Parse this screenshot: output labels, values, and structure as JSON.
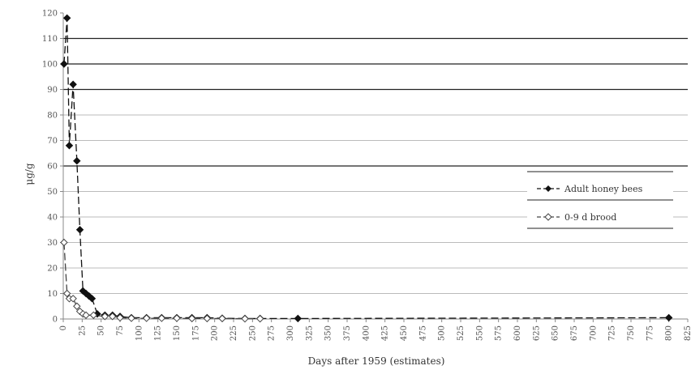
{
  "chart_data": {
    "type": "line",
    "xlabel": "Days after 1959 (estimates)",
    "ylabel": "μg/g",
    "xlim": [
      0,
      825
    ],
    "ylim": [
      0,
      120
    ],
    "x_ticks": [
      0,
      25,
      50,
      75,
      100,
      125,
      150,
      175,
      200,
      225,
      250,
      275,
      300,
      325,
      350,
      375,
      400,
      425,
      450,
      475,
      500,
      525,
      550,
      575,
      600,
      625,
      650,
      675,
      700,
      725,
      750,
      775,
      800,
      825
    ],
    "y_ticks": [
      0,
      10,
      20,
      30,
      40,
      50,
      60,
      70,
      80,
      90,
      100,
      110,
      120
    ],
    "horizontal_gridlines": [
      10,
      20,
      30,
      40,
      50,
      60,
      70,
      80,
      90,
      100,
      110
    ],
    "bold_gridlines": [
      60,
      90,
      100,
      110
    ],
    "legend_position": "right",
    "series": [
      {
        "name": "Adult honey bees",
        "marker": "filled-diamond",
        "line": "dashed",
        "color": "#111111",
        "points": [
          [
            1,
            100
          ],
          [
            5,
            118
          ],
          [
            8,
            68
          ],
          [
            13,
            92
          ],
          [
            18,
            62
          ],
          [
            22,
            35
          ],
          [
            26,
            11
          ],
          [
            30,
            10
          ],
          [
            34,
            9
          ],
          [
            38,
            8
          ],
          [
            45,
            2
          ],
          [
            55,
            1.5
          ],
          [
            65,
            1.5
          ],
          [
            75,
            1
          ],
          [
            90,
            0.5
          ],
          [
            110,
            0.5
          ],
          [
            130,
            0.5
          ],
          [
            150,
            0.5
          ],
          [
            170,
            0.5
          ],
          [
            190,
            0.5
          ],
          [
            210,
            0.3
          ],
          [
            240,
            0.2
          ],
          [
            260,
            0.2
          ],
          [
            310,
            0.2
          ],
          [
            800,
            0.5
          ]
        ]
      },
      {
        "name": "0-9 d brood",
        "marker": "open-diamond",
        "line": "dashed",
        "color": "#444444",
        "points": [
          [
            1,
            30
          ],
          [
            5,
            10
          ],
          [
            8,
            8
          ],
          [
            13,
            8
          ],
          [
            18,
            5
          ],
          [
            22,
            3
          ],
          [
            26,
            2
          ],
          [
            30,
            1.5
          ],
          [
            40,
            1.5
          ],
          [
            55,
            1
          ],
          [
            65,
            1
          ],
          [
            75,
            0.5
          ],
          [
            90,
            0.3
          ],
          [
            110,
            0.3
          ],
          [
            130,
            0.3
          ],
          [
            150,
            0.3
          ],
          [
            170,
            0.2
          ],
          [
            190,
            0.2
          ],
          [
            210,
            0.2
          ],
          [
            240,
            0.1
          ],
          [
            260,
            0.1
          ]
        ]
      }
    ]
  }
}
